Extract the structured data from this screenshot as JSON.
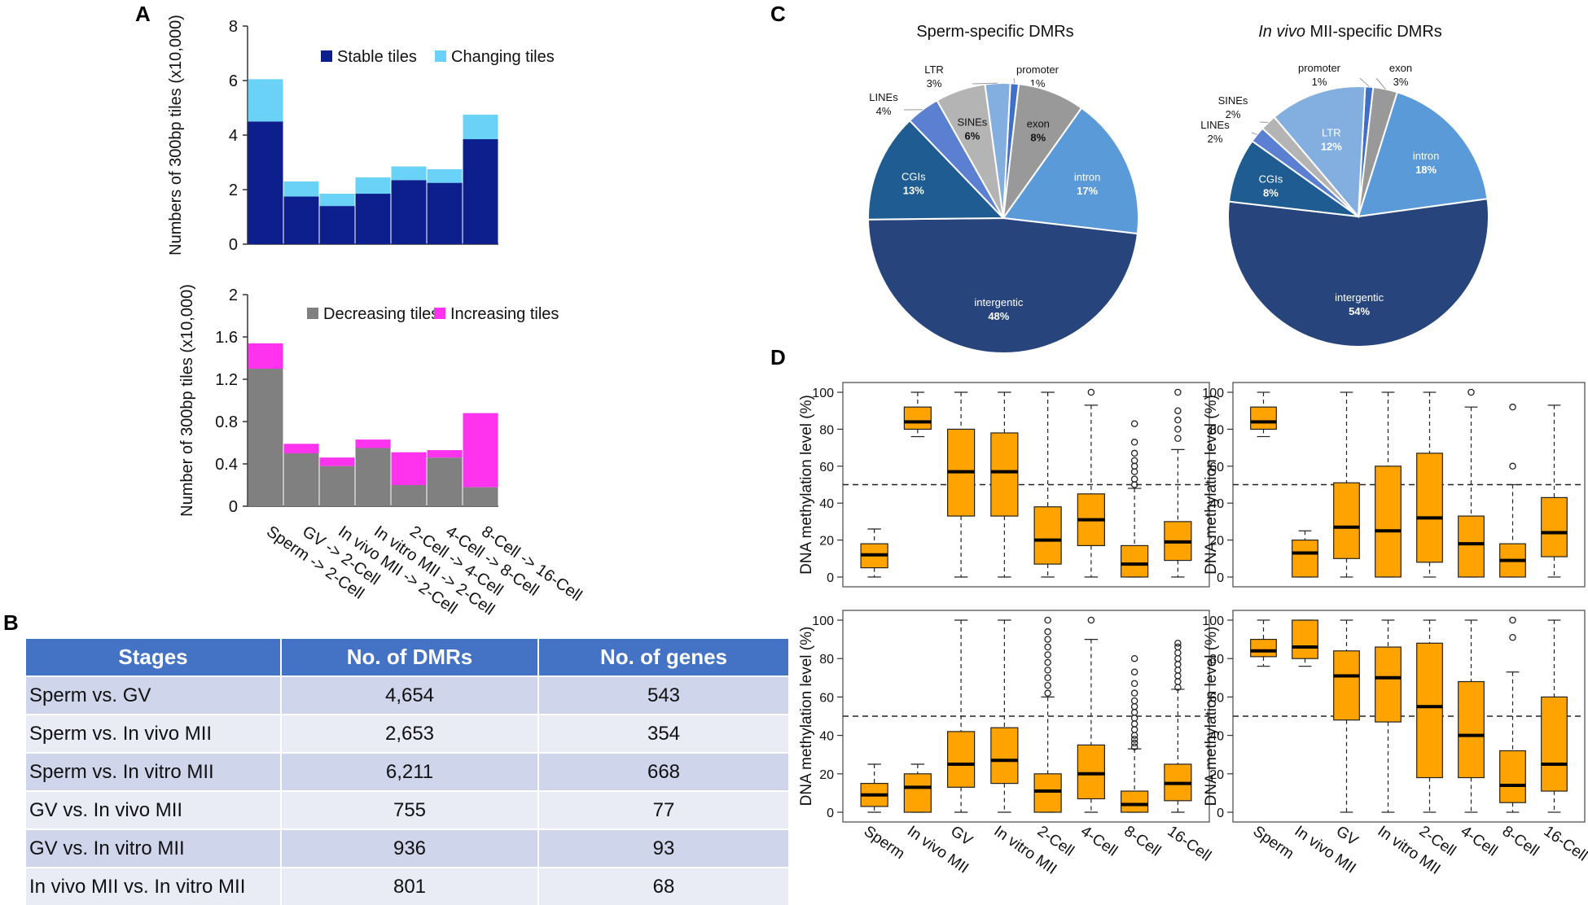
{
  "panels": {
    "a": "A",
    "b": "B",
    "c": "C",
    "d": "D"
  },
  "chart_data": [
    {
      "id": "A1",
      "type": "bar",
      "stacked": true,
      "categories": [
        "Sperm -> 2-Cell",
        "GV -> 2-Cell",
        "In vivo MII -> 2-Cell",
        "In vitro MII -> 2-Cell",
        "2-Cell -> 4-Cell",
        "4-Cell -> 8-Cell",
        "8-Cell -> 16-Cell"
      ],
      "series": [
        {
          "name": "Stable tiles",
          "color": "#0d1f8c",
          "values": [
            4.5,
            1.75,
            1.4,
            1.85,
            2.35,
            2.25,
            3.85
          ]
        },
        {
          "name": "Changing tiles",
          "color": "#6ad2f7",
          "values": [
            1.55,
            0.55,
            0.45,
            0.6,
            0.5,
            0.5,
            0.9
          ]
        }
      ],
      "ylabel": "Numbers of 300bp tiles (x10,000)",
      "ylim": [
        0,
        8
      ],
      "yticks": [
        "0",
        "2",
        "4",
        "6",
        "8"
      ],
      "legend": "top"
    },
    {
      "id": "A2",
      "type": "bar",
      "stacked": true,
      "categories": [
        "Sperm -> 2-Cell",
        "GV -> 2-Cell",
        "In vivo MII -> 2-Cell",
        "In vitro MII -> 2-Cell",
        "2-Cell -> 4-Cell",
        "4-Cell -> 8-Cell",
        "8-Cell -> 16-Cell"
      ],
      "series": [
        {
          "name": "Decreasing tiles",
          "color": "#808080",
          "values": [
            1.3,
            0.5,
            0.38,
            0.55,
            0.2,
            0.46,
            0.18
          ]
        },
        {
          "name": "Increasing tiles",
          "color": "#ff33ee",
          "values": [
            0.24,
            0.09,
            0.08,
            0.08,
            0.31,
            0.07,
            0.7
          ]
        }
      ],
      "ylabel": "Number of 300bp tiles (x10,000)",
      "ylim": [
        0,
        2
      ],
      "yticks": [
        "0",
        "0.4",
        "0.8",
        "1.2",
        "1.6",
        "2"
      ],
      "legend": "top"
    },
    {
      "id": "C1",
      "type": "pie",
      "title": "Sperm-specific DMRs",
      "slices": [
        {
          "label": "promoter",
          "pct": "1%",
          "value": 1,
          "color": "#3f6fc9",
          "labelPos": "outside"
        },
        {
          "label": "exon",
          "pct": "8%",
          "value": 8,
          "color": "#999999",
          "labelPos": "inside"
        },
        {
          "label": "intron",
          "pct": "17%",
          "value": 17,
          "color": "#5b9ad8",
          "labelPos": "inside"
        },
        {
          "label": "intergentic",
          "pct": "48%",
          "value": 48,
          "color": "#27457c",
          "labelPos": "inside"
        },
        {
          "label": "CGIs",
          "pct": "13%",
          "value": 13,
          "color": "#1f5c91",
          "labelPos": "inside"
        },
        {
          "label": "LINEs",
          "pct": "4%",
          "value": 4,
          "color": "#5b7fd1",
          "labelPos": "outside"
        },
        {
          "label": "SINEs",
          "pct": "6%",
          "value": 6,
          "color": "#b4b4b4",
          "labelPos": "inside"
        },
        {
          "label": "LTR",
          "pct": "3%",
          "value": 3,
          "color": "#82aee0",
          "labelPos": "outside"
        }
      ]
    },
    {
      "id": "C2",
      "type": "pie",
      "title_italic": "In vivo",
      "title_rest": " MII-specific DMRs",
      "slices": [
        {
          "label": "promoter",
          "pct": "1%",
          "value": 1,
          "color": "#3f6fc9",
          "labelPos": "outside"
        },
        {
          "label": "exon",
          "pct": "3%",
          "value": 3,
          "color": "#999999",
          "labelPos": "outside"
        },
        {
          "label": "intron",
          "pct": "18%",
          "value": 18,
          "color": "#5b9ad8",
          "labelPos": "inside"
        },
        {
          "label": "intergentic",
          "pct": "54%",
          "value": 54,
          "color": "#27457c",
          "labelPos": "inside"
        },
        {
          "label": "CGIs",
          "pct": "8%",
          "value": 8,
          "color": "#1f5c91",
          "labelPos": "inside"
        },
        {
          "label": "LINEs",
          "pct": "2%",
          "value": 2,
          "color": "#5b7fd1",
          "labelPos": "outside"
        },
        {
          "label": "SINEs",
          "pct": "2%",
          "value": 2,
          "color": "#b4b4b4",
          "labelPos": "outside"
        },
        {
          "label": "LTR",
          "pct": "12%",
          "value": 12,
          "color": "#82aee0",
          "labelPos": "inside"
        }
      ]
    },
    {
      "id": "D",
      "type": "box",
      "ylabel": "DNA methylation level (%)",
      "ylim": [
        0,
        100
      ],
      "yticks": [
        "0",
        "20",
        "40",
        "60",
        "80",
        "100"
      ],
      "reference_line": 50,
      "categories": [
        "Sperm",
        "In vivo MII",
        "GV",
        "In vitro MII",
        "2-Cell",
        "4-Cell",
        "8-Cell",
        "16-Cell"
      ],
      "box_color": "#ffa300",
      "panels": [
        {
          "name": "top-left",
          "boxes": [
            {
              "min": 0,
              "q1": 5,
              "med": 12,
              "q3": 18,
              "max": 26,
              "out": []
            },
            {
              "min": 76,
              "q1": 80,
              "med": 84,
              "q3": 92,
              "max": 100,
              "out": []
            },
            {
              "min": 0,
              "q1": 33,
              "med": 57,
              "q3": 80,
              "max": 100,
              "out": []
            },
            {
              "min": 0,
              "q1": 33,
              "med": 57,
              "q3": 78,
              "max": 100,
              "out": []
            },
            {
              "min": 0,
              "q1": 7,
              "med": 20,
              "q3": 38,
              "max": 100,
              "out": []
            },
            {
              "min": 0,
              "q1": 17,
              "med": 31,
              "q3": 45,
              "max": 93,
              "out": [
                100
              ]
            },
            {
              "min": 0,
              "q1": 0,
              "med": 7,
              "q3": 17,
              "max": 48,
              "out": [
                50,
                53,
                57,
                60,
                63,
                67,
                73,
                83
              ]
            },
            {
              "min": 0,
              "q1": 9,
              "med": 19,
              "q3": 30,
              "max": 69,
              "out": [
                75,
                80,
                85,
                90,
                100
              ]
            }
          ]
        },
        {
          "name": "top-right",
          "boxes": [
            {
              "min": 76,
              "q1": 80,
              "med": 84,
              "q3": 92,
              "max": 100,
              "out": []
            },
            {
              "min": 0,
              "q1": 0,
              "med": 13,
              "q3": 20,
              "max": 25,
              "out": []
            },
            {
              "min": 0,
              "q1": 10,
              "med": 27,
              "q3": 51,
              "max": 100,
              "out": []
            },
            {
              "min": 0,
              "q1": 0,
              "med": 25,
              "q3": 60,
              "max": 100,
              "out": []
            },
            {
              "min": 0,
              "q1": 8,
              "med": 32,
              "q3": 67,
              "max": 100,
              "out": []
            },
            {
              "min": 0,
              "q1": 0,
              "med": 18,
              "q3": 33,
              "max": 92,
              "out": [
                100
              ]
            },
            {
              "min": 0,
              "q1": 0,
              "med": 9,
              "q3": 18,
              "max": 50,
              "out": [
                60,
                92
              ]
            },
            {
              "min": 0,
              "q1": 11,
              "med": 24,
              "q3": 43,
              "max": 93,
              "out": []
            }
          ]
        },
        {
          "name": "bottom-left",
          "boxes": [
            {
              "min": 0,
              "q1": 3,
              "med": 9,
              "q3": 15,
              "max": 25,
              "out": []
            },
            {
              "min": 0,
              "q1": 0,
              "med": 13,
              "q3": 20,
              "max": 25,
              "out": []
            },
            {
              "min": 0,
              "q1": 13,
              "med": 25,
              "q3": 42,
              "max": 100,
              "out": []
            },
            {
              "min": 0,
              "q1": 15,
              "med": 27,
              "q3": 44,
              "max": 100,
              "out": []
            },
            {
              "min": 0,
              "q1": 0,
              "med": 11,
              "q3": 20,
              "max": 60,
              "out": [
                62,
                66,
                70,
                74,
                78,
                82,
                86,
                90,
                94,
                100
              ]
            },
            {
              "min": 0,
              "q1": 7,
              "med": 20,
              "q3": 35,
              "max": 90,
              "out": [
                100
              ]
            },
            {
              "min": 0,
              "q1": 0,
              "med": 4,
              "q3": 11,
              "max": 33,
              "out": [
                34,
                36,
                38,
                40,
                43,
                46,
                49,
                52,
                55,
                58,
                62,
                67,
                73,
                80
              ]
            },
            {
              "min": 0,
              "q1": 6,
              "med": 15,
              "q3": 25,
              "max": 64,
              "out": [
                65,
                68,
                71,
                74,
                77,
                80,
                83,
                86,
                88
              ]
            }
          ]
        },
        {
          "name": "bottom-right",
          "boxes": [
            {
              "min": 76,
              "q1": 81,
              "med": 84,
              "q3": 90,
              "max": 100,
              "out": []
            },
            {
              "min": 76,
              "q1": 80,
              "med": 86,
              "q3": 100,
              "max": 100,
              "out": []
            },
            {
              "min": 0,
              "q1": 48,
              "med": 71,
              "q3": 84,
              "max": 100,
              "out": []
            },
            {
              "min": 0,
              "q1": 47,
              "med": 70,
              "q3": 86,
              "max": 100,
              "out": []
            },
            {
              "min": 0,
              "q1": 18,
              "med": 55,
              "q3": 88,
              "max": 100,
              "out": []
            },
            {
              "min": 0,
              "q1": 18,
              "med": 40,
              "q3": 68,
              "max": 100,
              "out": []
            },
            {
              "min": 0,
              "q1": 5,
              "med": 14,
              "q3": 32,
              "max": 73,
              "out": [
                91,
                100
              ]
            },
            {
              "min": 0,
              "q1": 11,
              "med": 25,
              "q3": 60,
              "max": 100,
              "out": []
            }
          ]
        }
      ]
    }
  ],
  "table": {
    "headers": [
      "Stages",
      "No. of DMRs",
      "No. of genes"
    ],
    "rows": [
      [
        "Sperm vs. GV",
        "4,654",
        "543"
      ],
      [
        "Sperm vs. In vivo MII",
        "2,653",
        "354"
      ],
      [
        "Sperm vs. In vitro MII",
        "6,211",
        "668"
      ],
      [
        "GV vs. In vivo MII",
        "755",
        "77"
      ],
      [
        "GV vs. In vitro MII",
        "936",
        "93"
      ],
      [
        "In vivo MII vs.  In vitro MII",
        "801",
        "68"
      ]
    ]
  }
}
